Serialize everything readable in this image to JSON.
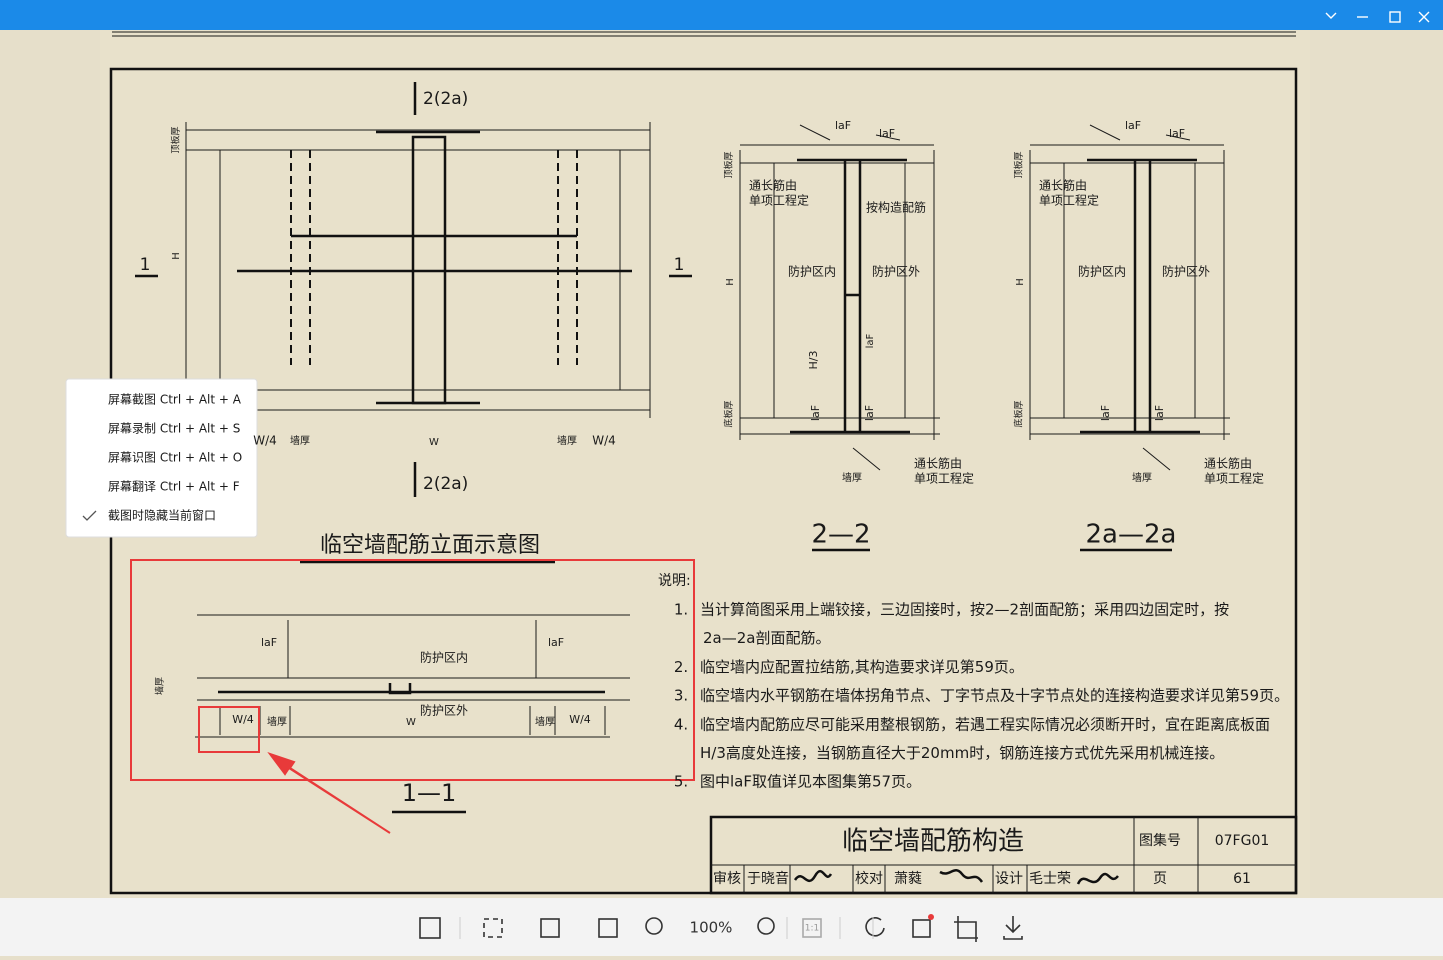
{
  "drawing": {
    "elevation": {
      "marker_top": "2(2a)",
      "marker_bottom": "2(2a)",
      "section_left": "1",
      "section_right": "1",
      "top_slab": "顶板厚",
      "height": "H",
      "dims": [
        "W/4",
        "墙厚",
        "W",
        "墙厚",
        "W/4"
      ],
      "title": "临空墙配筋立面示意图"
    },
    "section_2": {
      "laf_1": "laF",
      "laf_2": "laF",
      "top_slab": "顶板厚",
      "note_top_1": "通长筋由",
      "note_top_2": "单项工程定",
      "note_right": "按构造配筋",
      "inside": "防护区内",
      "outside": "防护区外",
      "height": "H",
      "h3": "H/3",
      "laf_mid": "laF",
      "bottom_slab": "底板厚",
      "laf_3": "laF",
      "laf_4": "laF",
      "wall": "墙厚",
      "note_bottom_1": "通长筋由",
      "note_bottom_2": "单项工程定",
      "title": "2—2"
    },
    "section_2a": {
      "laf_1": "laF",
      "laf_2": "laF",
      "top_slab": "顶板厚",
      "note_top_1": "通长筋由",
      "note_top_2": "单项工程定",
      "inside": "防护区内",
      "outside": "防护区外",
      "height": "H",
      "bottom_slab": "底板厚",
      "laf_3": "laF",
      "laf_4": "laF",
      "wall": "墙厚",
      "note_bottom_1": "通长筋由",
      "note_bottom_2": "单项工程定",
      "title": "2a—2a"
    },
    "section_1": {
      "laf_1": "laF",
      "laf_2": "laF",
      "inside": "防护区内",
      "wall": "墙厚",
      "outside": "防护区外",
      "dims": [
        "W/4",
        "墙厚",
        "W",
        "墙厚",
        "W/4"
      ],
      "title": "1—1"
    },
    "notes": {
      "heading": "说明:",
      "items": [
        {
          "number": "1.",
          "lines": [
            "当计算简图采用上端铰接，三边固接时，按2—2剖面配筋；采用四边固定时，按",
            "2a—2a剖面配筋。"
          ]
        },
        {
          "number": "2.",
          "lines": [
            "临空墙内应配置拉结筋,其构造要求详见第59页。"
          ]
        },
        {
          "number": "3.",
          "lines": [
            "临空墙内水平钢筋在墙体拐角节点、丁字节点及十字节点处的连接构造要求详见第59页。"
          ]
        },
        {
          "number": "4.",
          "lines": [
            "临空墙内配筋应尽可能采用整根钢筋，若遇工程实际情况必须断开时，宜在距离底板面",
            "H/3高度处连接，当钢筋直径大于20mm时，钢筋连接方式优先采用机械连接。"
          ]
        },
        {
          "number": "5.",
          "lines": [
            "图中laF取值详见本图集第57页。"
          ]
        }
      ]
    },
    "title_block": {
      "title": "临空墙配筋构造",
      "atlas_label": "图集号",
      "atlas_no": "07FG01",
      "review_label": "审核",
      "reviewer": "于晓音",
      "check_label": "校对",
      "checker": "萧蕤",
      "design_label": "设计",
      "designer": "毛士荣",
      "page_label": "页",
      "page_no": "61"
    }
  },
  "menu": {
    "items": [
      "屏幕截图 Ctrl + Alt + A",
      "屏幕录制 Ctrl + Alt + S",
      "屏幕识图 Ctrl + Alt + O",
      "屏幕翻译 Ctrl + Alt + F",
      "截图时隐藏当前窗口"
    ]
  },
  "toolbar": {
    "zoom": "100%",
    "actual_size": "1:1"
  }
}
